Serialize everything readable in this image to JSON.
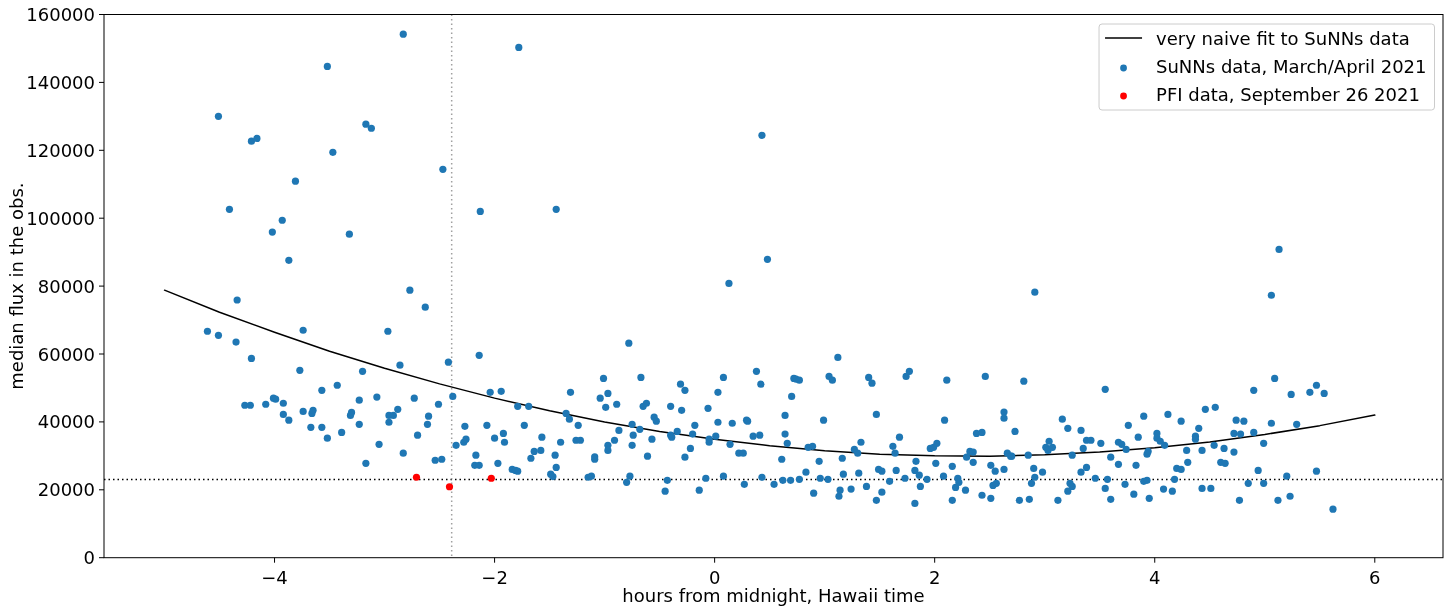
{
  "chart_data": {
    "type": "scatter",
    "xlabel": "hours from midnight, Hawaii time",
    "ylabel": "median flux in the obs.",
    "xlim": [
      -5.55,
      6.62
    ],
    "ylim": [
      0,
      160000
    ],
    "xticks": [
      {
        "value": -4,
        "label": "−4"
      },
      {
        "value": -2,
        "label": "−2"
      },
      0,
      2,
      4,
      6
    ],
    "yticks": [
      0,
      20000,
      40000,
      60000,
      80000,
      100000,
      120000,
      140000,
      160000
    ],
    "legend": "top right",
    "marker": "circle",
    "ref_lines": [
      {
        "axis": "y",
        "value": 23000,
        "color": "#000000",
        "line_style": "dotted"
      },
      {
        "axis": "x",
        "value": -2.39,
        "color": "#a0a0a0",
        "line_style": "dotted"
      }
    ],
    "series": [
      {
        "name": "very naive fit to SuNNs data",
        "type": "line",
        "marker": "none",
        "color": "#000000",
        "x": [
          -5,
          -4.5,
          -4,
          -3.5,
          -3,
          -2.5,
          -2,
          -1.5,
          -1,
          -0.5,
          0,
          0.5,
          1,
          1.5,
          2,
          2.5,
          3,
          3.5,
          4,
          4.5,
          5,
          5.5,
          6
        ],
        "values": [
          78800,
          72300,
          66400,
          60800,
          55800,
          51200,
          47000,
          43300,
          40000,
          37200,
          34900,
          33000,
          31500,
          30500,
          30000,
          29900,
          30300,
          31100,
          32400,
          34100,
          36300,
          38900,
          42000
        ]
      },
      {
        "name": "SuNNs data, March/April 2021",
        "color": "#1f77b4",
        "x": [
          -4.51,
          -4.41,
          -4.21,
          -4.16,
          -4.02,
          -3.93,
          -3.87,
          -3.81,
          -3.52,
          -3.47,
          -3.32,
          -3.17,
          -3.12,
          -2.83,
          -2.77,
          -2.47,
          -2.13,
          -1.78,
          -1.44,
          -4.34,
          0.43,
          0.48,
          0.13,
          2.91,
          5.13,
          5.06,
          -4.61,
          -4.51,
          -4.35,
          -4.21,
          -4.27,
          -4.22,
          -4.08,
          -4.01,
          -3.99,
          -3.92,
          -3.92,
          -3.87,
          -3.77,
          -3.74,
          -3.74,
          -3.67,
          -3.66,
          -3.65,
          -3.57,
          -3.57,
          -3.52,
          -3.43,
          -3.39,
          -3.31,
          -3.3,
          -3.23,
          -3.23,
          -3.2,
          -3.17,
          -3.07,
          -3.05,
          -2.97,
          -2.96,
          -2.96,
          -2.92,
          -2.88,
          -2.86,
          -2.83,
          -2.73,
          -2.7,
          -2.63,
          -2.61,
          -2.6,
          -2.54,
          -2.51,
          -2.48,
          -2.42,
          -2.38,
          -2.35,
          -2.28,
          -2.27,
          -2.26,
          -2.17,
          -2.18,
          -2.14,
          -2.14,
          -2.07,
          -2.04,
          -2.0,
          -1.97,
          -1.94,
          -1.92,
          -1.91,
          -1.84,
          -1.81,
          -1.79,
          -1.79,
          -1.73,
          -1.69,
          -1.67,
          -1.64,
          -1.58,
          -1.57,
          -1.49,
          -1.47,
          -1.45,
          -1.44,
          -1.4,
          -0.78,
          1.12,
          0.38,
          0.08,
          -0.67,
          -1.01,
          0.42,
          -0.31,
          -0.27,
          0.03,
          -1.31,
          -0.97,
          -1.04,
          -0.99,
          -0.89,
          -0.65,
          -0.62,
          -0.4,
          -0.06,
          -0.3,
          0.7,
          0.72,
          0.74,
          0.77,
          1.04,
          1.07,
          1.4,
          1.43,
          1.74,
          1.77,
          2.11,
          2.46,
          1.47,
          2.09,
          0.99,
          0.64,
          0.29,
          0.3,
          0.16,
          0.03,
          -1.35,
          -1.32,
          -1.24,
          -1.26,
          -1.22,
          -1.09,
          -1.09,
          -1.15,
          -1.12,
          -0.97,
          -0.97,
          -0.91,
          -0.87,
          -0.77,
          -0.8,
          -0.75,
          -0.74,
          -0.75,
          -0.68,
          -0.61,
          -0.57,
          -0.55,
          -0.53,
          -0.45,
          -0.43,
          -0.4,
          -0.39,
          -0.34,
          -0.27,
          -0.22,
          -0.2,
          -0.18,
          -0.14,
          -0.08,
          -0.05,
          -0.05,
          0.01,
          0.08,
          0.14,
          0.22,
          0.26,
          0.27,
          0.35,
          0.41,
          0.43,
          0.54,
          0.61,
          0.62,
          0.64,
          0.66,
          0.69,
          0.77,
          0.83,
          0.85,
          0.89,
          0.9,
          0.95,
          0.96,
          1.03,
          1.13,
          1.14,
          1.16,
          1.17,
          1.24,
          1.27,
          1.3,
          1.31,
          1.33,
          1.38,
          1.47,
          1.49,
          1.52,
          1.52,
          1.59,
          1.62,
          1.64,
          1.65,
          1.68,
          1.73,
          1.82,
          1.82,
          1.83,
          1.86,
          1.87,
          1.93,
          1.96,
          1.99,
          2.02,
          2.01,
          2.08,
          2.16,
          2.16,
          2.19,
          2.21,
          2.22,
          2.28,
          2.29,
          2.32,
          2.35,
          2.35,
          2.38,
          2.43,
          2.43,
          2.51,
          2.51,
          2.55,
          2.53,
          2.56,
          2.81,
          3.55,
          5.09,
          4.9,
          5.24,
          5.41,
          5.47,
          5.54,
          5.62,
          2.63,
          2.63,
          2.73,
          2.66,
          2.69,
          2.7,
          2.63,
          2.77,
          2.86,
          2.85,
          2.9,
          2.91,
          2.88,
          2.98,
          3.01,
          3.03,
          3.04,
          3.07,
          3.12,
          3.16,
          3.21,
          3.21,
          3.23,
          3.25,
          3.25,
          3.33,
          3.33,
          3.35,
          3.38,
          3.42,
          3.38,
          3.46,
          3.51,
          3.55,
          3.57,
          3.6,
          3.6,
          3.67,
          3.7,
          3.67,
          3.73,
          3.74,
          3.76,
          3.81,
          3.83,
          3.85,
          3.9,
          3.9,
          3.93,
          3.93,
          3.94,
          3.95,
          4.02,
          4.02,
          4.05,
          4.09,
          4.08,
          4.12,
          4.16,
          4.18,
          4.2,
          4.24,
          4.24,
          4.29,
          4.3,
          4.37,
          4.37,
          4.4,
          4.43,
          4.43,
          4.46,
          4.51,
          4.54,
          4.55,
          4.6,
          4.64,
          4.63,
          4.72,
          4.72,
          4.74,
          4.81,
          4.77,
          4.78,
          4.85,
          4.9,
          4.94,
          4.99,
          4.99,
          5.06,
          5.12,
          5.2,
          5.23,
          5.29,
          5.47
        ],
        "values": [
          130000,
          102600,
          122700,
          123500,
          95900,
          99400,
          87600,
          110900,
          144700,
          119400,
          95300,
          127700,
          126500,
          154200,
          78800,
          114400,
          102000,
          150300,
          102600,
          75900,
          124400,
          87900,
          80800,
          78200,
          90800,
          77300,
          66700,
          65500,
          63500,
          58700,
          44900,
          44900,
          45200,
          47000,
          46700,
          45500,
          42200,
          40500,
          55200,
          67000,
          43100,
          38400,
          42500,
          43400,
          49300,
          38400,
          35200,
          50800,
          36900,
          41900,
          42800,
          46400,
          39300,
          54900,
          27800,
          47300,
          33400,
          66700,
          41900,
          39900,
          41900,
          43700,
          56700,
          30800,
          47000,
          36100,
          73800,
          39300,
          41700,
          28700,
          45200,
          29000,
          57600,
          47500,
          33100,
          34000,
          38700,
          34900,
          30200,
          27200,
          27200,
          59600,
          39000,
          48700,
          35200,
          27800,
          49000,
          36600,
          34000,
          26000,
          25700,
          25500,
          44600,
          39000,
          44600,
          29300,
          31300,
          31600,
          35500,
          24600,
          23900,
          30200,
          26600,
          34000,
          63200,
          59000,
          54900,
          53100,
          53100,
          52800,
          51100,
          51100,
          49300,
          48700,
          48700,
          48400,
          47000,
          44300,
          45200,
          44600,
          45500,
          44600,
          44000,
          43400,
          47500,
          52800,
          52600,
          52300,
          53400,
          52300,
          53100,
          51400,
          53400,
          54900,
          52300,
          53400,
          42200,
          40500,
          40500,
          41900,
          40500,
          40200,
          39600,
          39900,
          42500,
          40800,
          39000,
          34600,
          34600,
          29700,
          29000,
          23700,
          24000,
          33100,
          31600,
          34600,
          37500,
          24000,
          22200,
          39300,
          36100,
          33100,
          37800,
          29900,
          34900,
          41400,
          40200,
          19600,
          22800,
          36100,
          35500,
          37200,
          29600,
          32200,
          36400,
          39000,
          19900,
          23400,
          34900,
          34000,
          35800,
          24000,
          33400,
          30800,
          30800,
          21600,
          35800,
          36100,
          23700,
          21600,
          29000,
          22800,
          36400,
          33700,
          22800,
          23100,
          25200,
          32500,
          32800,
          19000,
          28400,
          23400,
          23100,
          18100,
          19900,
          29300,
          24600,
          20200,
          31900,
          30800,
          24900,
          34000,
          21000,
          16900,
          26000,
          25500,
          19300,
          22500,
          32800,
          30800,
          25700,
          35500,
          23400,
          16000,
          25700,
          28400,
          24300,
          21000,
          23100,
          32200,
          32500,
          33700,
          27800,
          24000,
          26900,
          16900,
          20700,
          23400,
          22200,
          19900,
          29600,
          31300,
          31100,
          28100,
          36600,
          36900,
          18400,
          17500,
          27200,
          25500,
          21300,
          21900,
          52000,
          49600,
          52800,
          49300,
          48100,
          48700,
          50800,
          48400,
          14300,
          42900,
          41100,
          37200,
          30800,
          29900,
          29900,
          26000,
          16900,
          17200,
          30200,
          26300,
          23700,
          21900,
          25200,
          32500,
          31600,
          34300,
          32500,
          16900,
          40800,
          38100,
          19600,
          21900,
          21000,
          30200,
          37500,
          25200,
          32200,
          34600,
          34600,
          26600,
          23400,
          33700,
          20400,
          23100,
          29600,
          17200,
          34000,
          33400,
          27500,
          21600,
          31900,
          39000,
          18700,
          27200,
          35500,
          41700,
          22500,
          22800,
          30500,
          31300,
          17500,
          36600,
          35200,
          34300,
          33100,
          20200,
          42200,
          19600,
          23100,
          26300,
          26000,
          40200,
          31600,
          28100,
          35800,
          34900,
          38100,
          20400,
          31600,
          43700,
          20400,
          33100,
          44300,
          28100,
          27800,
          32200,
          36600,
          31100,
          40500,
          40200,
          16900,
          36400,
          21900,
          36900,
          25700,
          33700,
          21900,
          39600,
          16900,
          24000,
          18100,
          39300,
          25500
        ]
      },
      {
        "name": "PFI data, September 26 2021",
        "color": "#ff0000",
        "x": [
          -2.71,
          -2.41,
          -2.03
        ],
        "values": [
          23700,
          20900,
          23400
        ]
      }
    ]
  }
}
